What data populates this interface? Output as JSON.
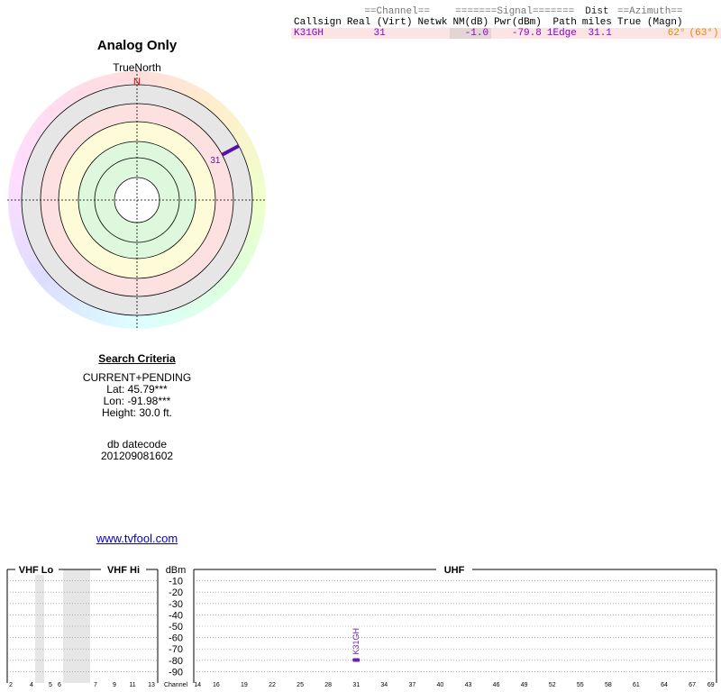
{
  "table": {
    "group_headers": [
      "==Channel==",
      "=======Signal=======",
      "Dist",
      "==Azimuth=="
    ],
    "columns": [
      "Callsign",
      "Real (Virt)",
      "Netwk",
      "NM(dB)",
      "Pwr(dBm)",
      "Path",
      "miles",
      "True (Magn)"
    ],
    "rows": [
      [
        "K31GH",
        "31",
        "",
        "-1.0",
        "-79.8",
        "1Edge",
        "31.1",
        "62°",
        "(63°)"
      ]
    ]
  },
  "polar": {
    "title": "Analog Only",
    "north_label": "TrueNorth",
    "north_marker": "N",
    "signals": [
      {
        "label": "31",
        "azimuth": 62
      }
    ]
  },
  "criteria": {
    "title": "Search Criteria",
    "lines": [
      "CURRENT+PENDING",
      "Lat: 45.79***",
      "Lon: -91.98***",
      "Height: 30.0 ft."
    ],
    "datecode_label": "db datecode",
    "datecode": "201209081602"
  },
  "link": "www.tvfool.com",
  "spectrum": {
    "type": "bar",
    "vhf_lo": "VHF Lo",
    "vhf_hi": "VHF Hi",
    "uhf": "UHF",
    "y_label": "dBm",
    "x_label": "Channel",
    "ylim": [
      0,
      -100
    ],
    "yticks": [
      -10,
      -20,
      -30,
      -40,
      -50,
      -60,
      -70,
      -80,
      -90
    ],
    "vhf_ticks": [
      2,
      4,
      5,
      6,
      7,
      9,
      11,
      13
    ],
    "uhf_xlim": [
      13.6,
      69.6
    ],
    "uhf_ticks": [
      14,
      16,
      19,
      22,
      25,
      28,
      31,
      34,
      37,
      40,
      43,
      46,
      49,
      52,
      55,
      58,
      61,
      64,
      67,
      69
    ],
    "color": "#6a1fb0",
    "signals": [
      {
        "callsign": "K31GH",
        "channel": 31,
        "power": -79.8
      }
    ]
  }
}
